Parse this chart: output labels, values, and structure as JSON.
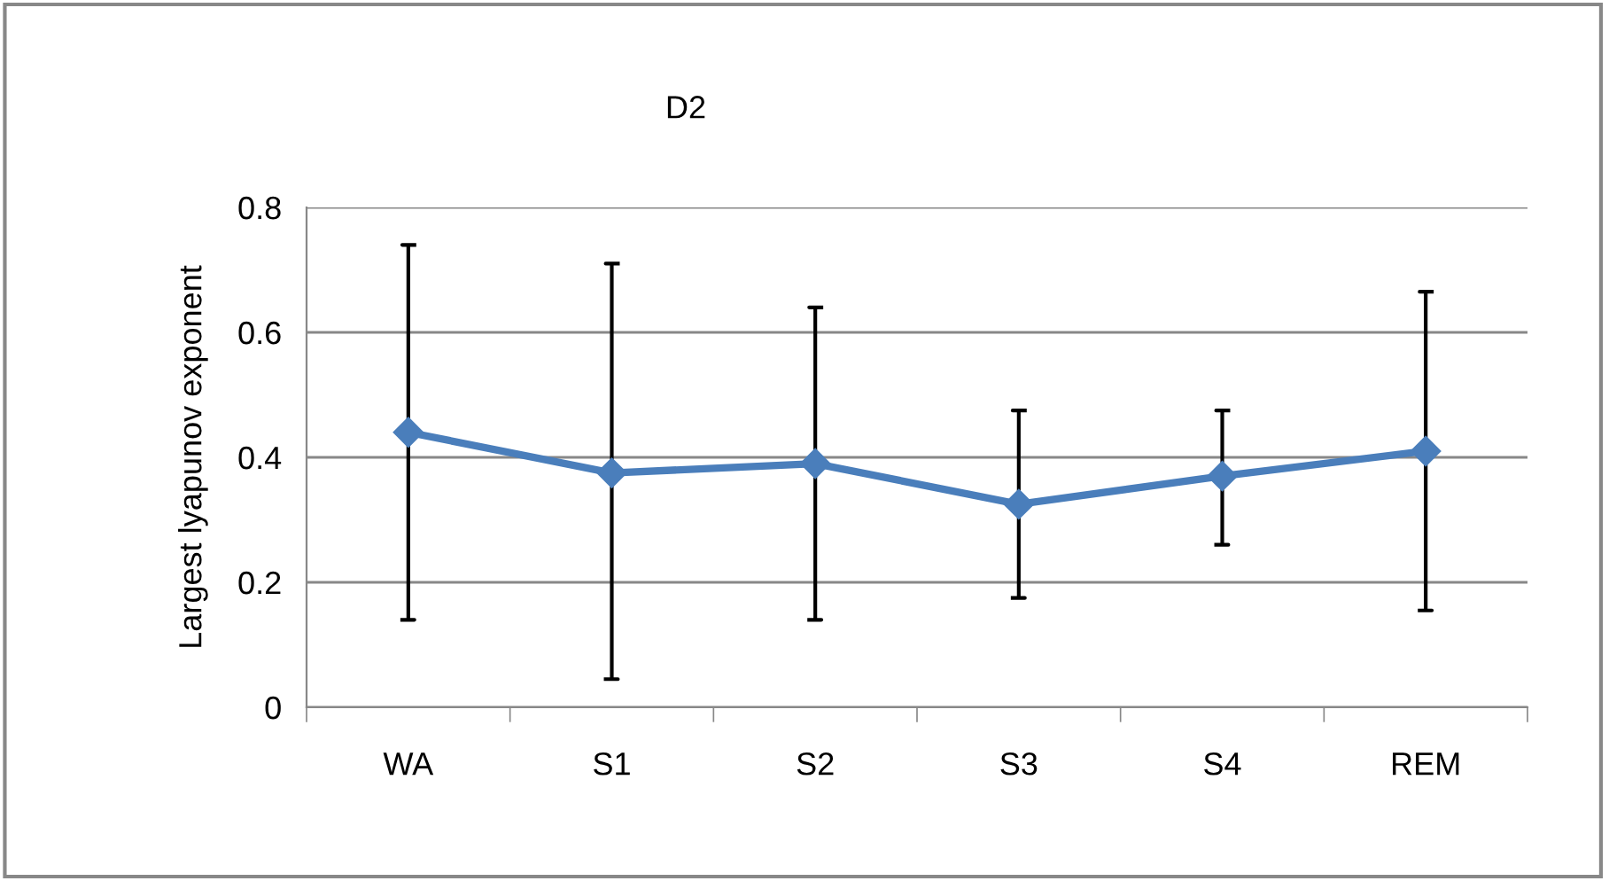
{
  "chart_data": {
    "type": "line",
    "title": "D2",
    "ylabel": "Largest lyapunov exponent",
    "categories": [
      "WA",
      "S1",
      "S2",
      "S3",
      "S4",
      "REM"
    ],
    "series": [
      {
        "color": "#4a7ebb",
        "values": [
          0.44,
          0.375,
          0.39,
          0.325,
          0.37,
          0.41
        ],
        "errors": [
          [
            0.14,
            0.74
          ],
          [
            0.045,
            0.71
          ],
          [
            0.14,
            0.64
          ],
          [
            0.175,
            0.475
          ],
          [
            0.26,
            0.475
          ],
          [
            0.155,
            0.665
          ]
        ]
      }
    ],
    "ylim": [
      0,
      0.8
    ],
    "yticks": [
      0,
      0.2,
      0.4,
      0.6,
      0.8
    ],
    "grid": "y",
    "marker": "diamond",
    "line_style": "solid",
    "legend": false
  }
}
